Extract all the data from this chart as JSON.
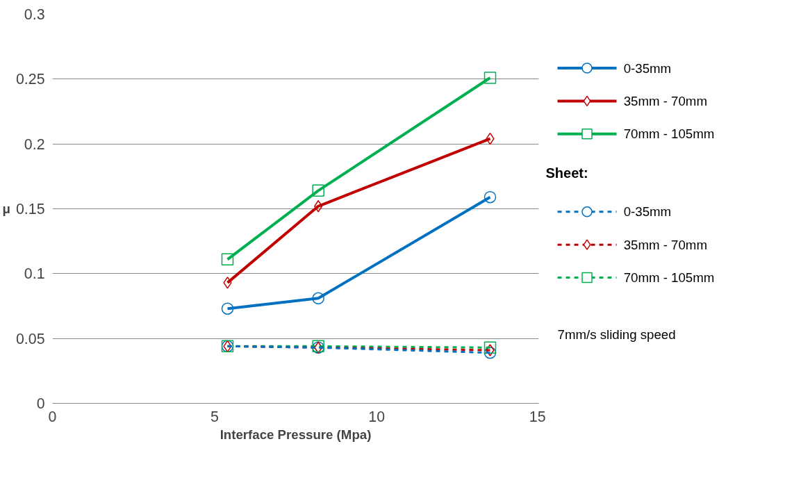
{
  "chart_data": {
    "type": "line",
    "xlabel": "Interface Pressure (Mpa)",
    "ylabel": "μ",
    "x": [
      5.4,
      8.2,
      13.5
    ],
    "xlim": [
      0,
      15
    ],
    "xticks": [
      0,
      5,
      10,
      15
    ],
    "ylim": [
      0,
      0.3
    ],
    "yticks": [
      0,
      0.05,
      0.1,
      0.15,
      0.2,
      0.25,
      0.3
    ],
    "grid": "y",
    "legend": "right",
    "legend_title": "Sheet:",
    "series": [
      {
        "name": "0-35mm",
        "color": "#0070c0",
        "marker": "circle",
        "line_style": "solid",
        "values": [
          0.073,
          0.081,
          0.159
        ]
      },
      {
        "name": "35mm - 70mm",
        "color": "#c00000",
        "marker": "diamond",
        "line_style": "solid",
        "values": [
          0.093,
          0.152,
          0.204
        ]
      },
      {
        "name": "70mm - 105mm",
        "color": "#00b050",
        "marker": "square",
        "line_style": "solid",
        "values": [
          0.111,
          0.164,
          0.251
        ]
      },
      {
        "name": "0-35mm",
        "color": "#0070c0",
        "marker": "circle",
        "line_style": "dashed",
        "values": [
          0.044,
          0.043,
          0.039
        ]
      },
      {
        "name": "35mm - 70mm",
        "color": "#c00000",
        "marker": "diamond",
        "line_style": "dashed",
        "values": [
          0.044,
          0.043,
          0.041
        ]
      },
      {
        "name": "70mm - 105mm",
        "color": "#00b050",
        "marker": "square",
        "line_style": "dashed",
        "values": [
          0.044,
          0.044,
          0.043
        ]
      }
    ],
    "annotations": [
      "7mm/s sliding speed"
    ]
  }
}
